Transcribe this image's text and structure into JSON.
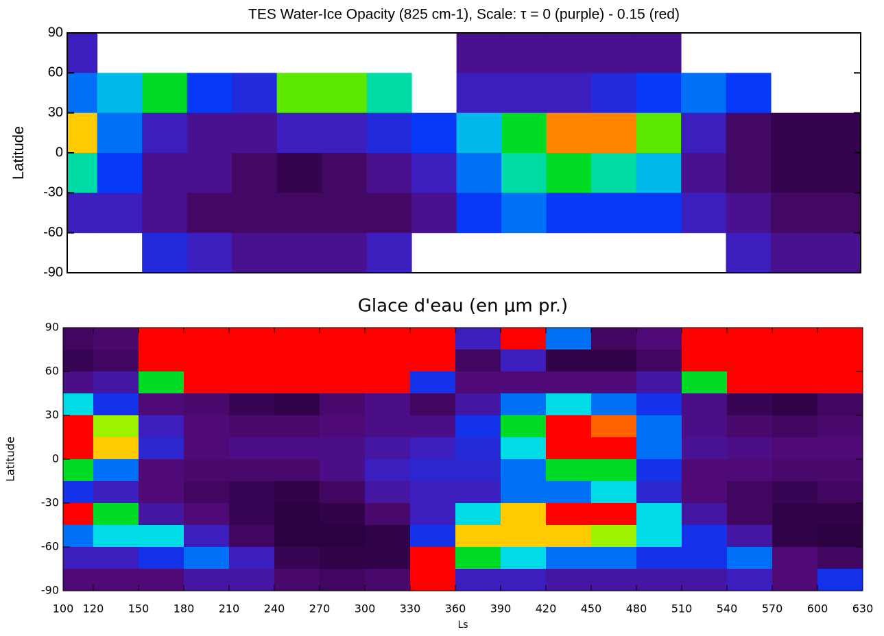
{
  "chart_data": [
    {
      "type": "heatmap",
      "title": "TES Water-Ice Opacity (825 cm-1),  Scale: τ = 0 (purple) - 0.15 (red)",
      "ylabel": "Latitude",
      "xlim": [
        100,
        630
      ],
      "ylim": [
        -90,
        90
      ],
      "yticks": [
        90,
        60,
        30,
        0,
        -30,
        -60,
        -90
      ],
      "clim": [
        0,
        0.15
      ],
      "x": [
        105,
        135,
        165,
        195,
        225,
        255,
        285,
        315,
        345,
        375,
        405,
        435,
        465,
        495,
        525,
        555,
        585,
        615
      ],
      "y": [
        75,
        45,
        15,
        -15,
        -45,
        -75
      ],
      "z": [
        [
          0.03,
          0.06,
          0.12,
          0.08,
          0.03,
          null
        ],
        [
          null,
          0.07,
          0.06,
          0.05,
          0.03,
          null
        ],
        [
          null,
          0.09,
          0.03,
          0.02,
          0.02,
          0.04
        ],
        [
          null,
          0.05,
          0.02,
          0.02,
          0.01,
          0.03
        ],
        [
          null,
          0.04,
          0.02,
          0.01,
          0.01,
          0.02
        ],
        [
          null,
          0.1,
          0.03,
          0.005,
          0.01,
          0.02
        ],
        [
          null,
          0.1,
          0.03,
          0.01,
          0.01,
          0.02
        ],
        [
          null,
          0.08,
          0.04,
          0.02,
          0.01,
          0.03
        ],
        [
          null,
          null,
          0.05,
          0.03,
          0.02,
          null
        ],
        [
          0.02,
          0.03,
          0.07,
          0.06,
          0.05,
          null
        ],
        [
          0.02,
          0.03,
          0.09,
          0.08,
          0.06,
          null
        ],
        [
          0.02,
          0.03,
          0.13,
          0.09,
          0.05,
          null
        ],
        [
          0.02,
          0.04,
          0.13,
          0.08,
          0.05,
          null
        ],
        [
          0.02,
          0.05,
          0.1,
          0.07,
          0.05,
          null
        ],
        [
          null,
          0.06,
          0.03,
          0.02,
          0.03,
          null
        ],
        [
          null,
          0.05,
          0.01,
          0.01,
          0.02,
          0.03
        ],
        [
          null,
          null,
          0.005,
          0.005,
          0.01,
          0.02
        ],
        [
          null,
          null,
          0.005,
          0.005,
          0.01,
          0.02
        ]
      ]
    },
    {
      "type": "heatmap",
      "title": "Glace d'eau (en μm pr.)",
      "ylabel": "Latitude",
      "xlabel": "Ls",
      "xlim": [
        100,
        630
      ],
      "ylim": [
        -90,
        90
      ],
      "xticks": [
        100,
        120,
        150,
        180,
        210,
        240,
        270,
        300,
        330,
        360,
        390,
        420,
        450,
        480,
        510,
        540,
        570,
        600,
        630
      ],
      "yticks": [
        90,
        60,
        30,
        0,
        -30,
        -60,
        -90
      ],
      "clim": [
        0,
        5
      ],
      "x": [
        105,
        135,
        165,
        195,
        225,
        255,
        285,
        315,
        345,
        375,
        405,
        435,
        465,
        495,
        525,
        555,
        585,
        615
      ],
      "y": [
        82.5,
        67.5,
        52.5,
        37.5,
        22.5,
        7.5,
        -7.5,
        -22.5,
        -37.5,
        -52.5,
        -67.5,
        -82.5
      ],
      "z": [
        [
          0.3,
          0.2,
          0.6,
          2.5,
          5,
          5.5,
          3,
          1.5,
          5,
          2,
          1,
          0.5
        ],
        [
          0.4,
          0.3,
          0.8,
          1.5,
          3.5,
          4,
          2,
          1,
          3,
          2.5,
          1,
          0.5
        ],
        [
          8,
          8,
          3,
          0.5,
          1,
          1.2,
          0.5,
          0.5,
          0.8,
          2.5,
          1.5,
          0.5
        ],
        [
          8,
          8,
          5,
          0.4,
          0.5,
          0.5,
          0.4,
          0.3,
          0.5,
          1,
          2,
          0.8
        ],
        [
          8,
          8,
          6,
          0.2,
          0.4,
          0.6,
          0.4,
          0.2,
          0.2,
          0.3,
          1,
          0.8
        ],
        [
          8,
          8,
          6,
          0.1,
          0.4,
          0.6,
          0.4,
          0.1,
          0.05,
          0.05,
          0.2,
          0.4
        ],
        [
          8,
          8,
          6,
          0.4,
          0.5,
          0.6,
          0.6,
          0.3,
          0.1,
          0.05,
          0.1,
          0.3
        ],
        [
          8,
          8,
          5,
          0.6,
          0.6,
          0.8,
          1,
          0.8,
          0.4,
          0.1,
          0.1,
          0.4
        ],
        [
          8,
          7,
          1.5,
          0.3,
          0.6,
          1,
          1.2,
          1,
          1,
          1.5,
          5,
          8
        ],
        [
          1,
          0.3,
          0.5,
          0.8,
          1.5,
          1.3,
          1.2,
          1,
          2.5,
          4,
          3,
          1
        ],
        [
          6,
          1,
          0.5,
          2,
          3,
          2.5,
          2,
          2,
          4,
          4,
          2.5,
          1
        ],
        [
          2,
          0.1,
          0.5,
          2.5,
          5,
          6,
          3,
          2,
          6,
          4,
          2,
          0.8
        ],
        [
          0.3,
          0.1,
          0.5,
          2,
          4.5,
          5,
          3,
          2.5,
          5,
          3.5,
          2,
          0.8
        ],
        [
          0.5,
          0.3,
          0.8,
          1.5,
          2,
          2,
          1.5,
          1.2,
          2.5,
          2.5,
          1.5,
          0.8
        ],
        [
          8,
          8,
          3,
          0.6,
          0.6,
          0.7,
          0.5,
          0.5,
          0.8,
          1.5,
          1.5,
          0.8
        ],
        [
          8,
          8,
          6,
          0.2,
          0.4,
          0.6,
          0.5,
          0.3,
          0.3,
          0.8,
          2,
          1
        ],
        [
          8,
          8,
          6,
          0.1,
          0.3,
          0.5,
          0.4,
          0.2,
          0.1,
          0.1,
          0.5,
          0.5
        ],
        [
          8,
          8,
          6,
          0.3,
          0.4,
          0.5,
          0.4,
          0.3,
          0.1,
          0.05,
          0.3,
          1.5
        ]
      ]
    }
  ]
}
